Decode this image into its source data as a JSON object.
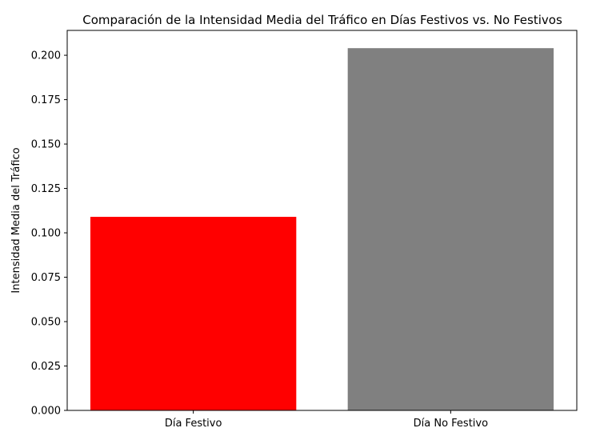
{
  "chart_data": {
    "type": "bar",
    "title": "Comparación de la Intensidad Media del Tráfico en Días Festivos vs. No Festivos",
    "xlabel": "",
    "ylabel": "Intensidad Media del Tráfico",
    "categories": [
      "Día Festivo",
      "Día No Festivo"
    ],
    "values": [
      0.109,
      0.204
    ],
    "colors": [
      "#ff0000",
      "#808080"
    ],
    "ylim": [
      0,
      0.214
    ],
    "yticks": [
      "0.000",
      "0.025",
      "0.050",
      "0.075",
      "0.100",
      "0.125",
      "0.150",
      "0.175",
      "0.200"
    ],
    "grid": false,
    "legend": "none"
  }
}
